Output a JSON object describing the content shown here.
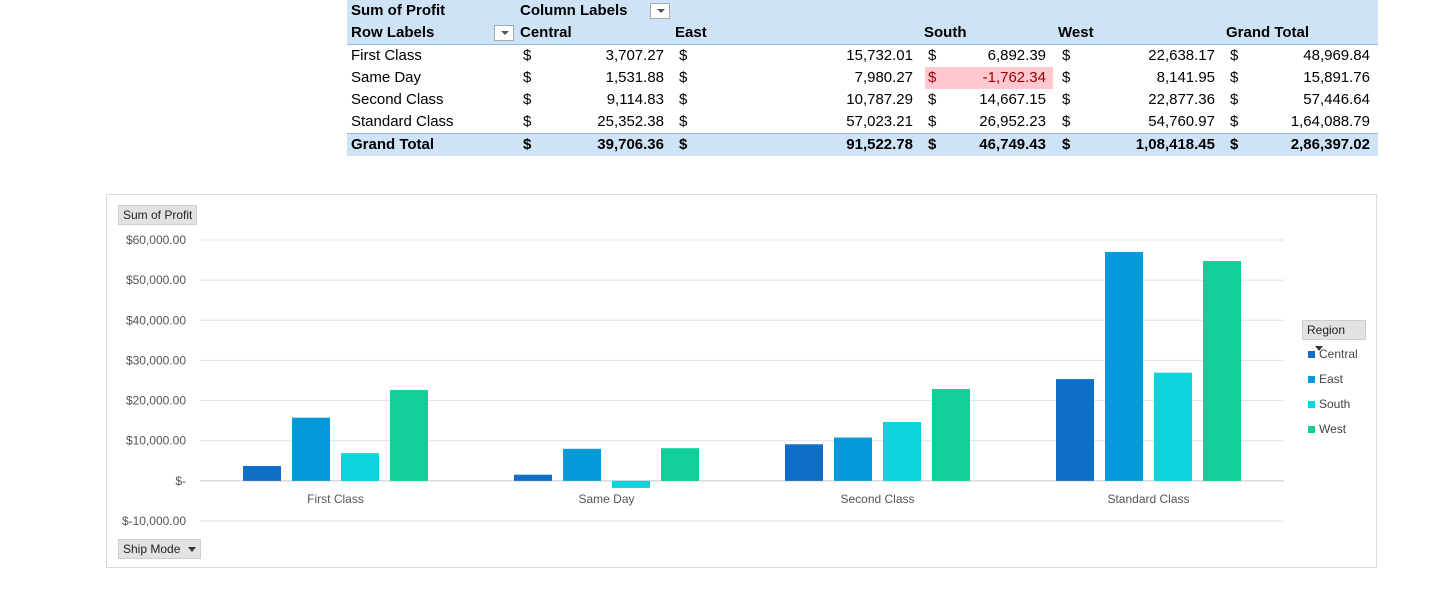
{
  "pivot": {
    "header1": {
      "label": "Sum of Profit",
      "columns_label": "Column Labels"
    },
    "header2": {
      "row_labels": "Row Labels",
      "regions": [
        "Central",
        "East",
        "South",
        "West",
        "Grand Total"
      ]
    },
    "currency": "$",
    "rows": [
      {
        "label": "First Class",
        "values": [
          "3,707.27",
          "15,732.01",
          "6,892.39",
          "22,638.17",
          "48,969.84"
        ]
      },
      {
        "label": "Same Day",
        "values": [
          "1,531.88",
          "7,980.27",
          "-1,762.34",
          "8,141.95",
          "15,891.76"
        ]
      },
      {
        "label": "Second Class",
        "values": [
          "9,114.83",
          "10,787.29",
          "14,667.15",
          "22,877.36",
          "57,446.64"
        ]
      },
      {
        "label": "Standard Class",
        "values": [
          "25,352.38",
          "57,023.21",
          "26,952.23",
          "54,760.97",
          "1,64,088.79"
        ]
      }
    ],
    "grand_total": {
      "label": "Grand Total",
      "values": [
        "39,706.36",
        "91,522.78",
        "46,749.43",
        "1,08,418.45",
        "2,86,397.02"
      ]
    },
    "highlight_negative_color": "#ffc7ce"
  },
  "chart_field_buttons": {
    "values": "Sum of Profit",
    "axis": "Ship Mode",
    "legend": "Region"
  },
  "chart_data": {
    "type": "bar",
    "categories": [
      "First Class",
      "Same Day",
      "Second Class",
      "Standard Class"
    ],
    "series": [
      {
        "name": "Central",
        "color": "#0f6ec8",
        "values": [
          3707.27,
          1531.88,
          9114.83,
          25352.38
        ]
      },
      {
        "name": "East",
        "color": "#0499d9",
        "values": [
          15732.01,
          7980.27,
          10787.29,
          57023.21
        ]
      },
      {
        "name": "South",
        "color": "#0ed2dc",
        "values": [
          6892.39,
          -1762.34,
          14667.15,
          26952.23
        ]
      },
      {
        "name": "West",
        "color": "#10cf97",
        "values": [
          22638.17,
          8141.95,
          22877.36,
          54760.97
        ]
      }
    ],
    "ylim": [
      -10000,
      60000
    ],
    "yticks": [
      60000,
      50000,
      40000,
      30000,
      20000,
      10000,
      0,
      -10000
    ],
    "ytick_labels": [
      "$60,000.00",
      "$50,000.00",
      "$40,000.00",
      "$30,000.00",
      "$20,000.00",
      "$10,000.00",
      "$-",
      "$-10,000.00"
    ],
    "grid": true,
    "legend_position": "right"
  }
}
